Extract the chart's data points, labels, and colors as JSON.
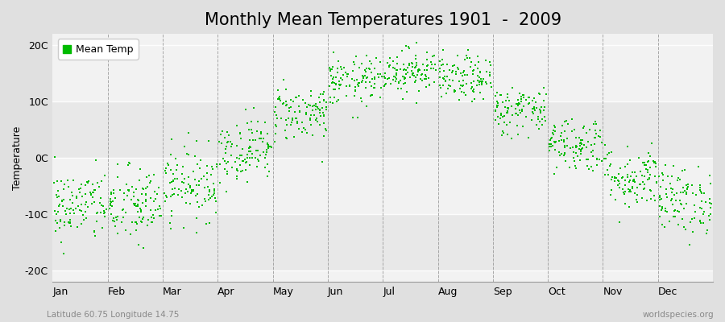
{
  "title": "Monthly Mean Temperatures 1901  -  2009",
  "ylabel": "Temperature",
  "xlabel_labels": [
    "Jan",
    "Feb",
    "Mar",
    "Apr",
    "May",
    "Jun",
    "Jul",
    "Aug",
    "Sep",
    "Oct",
    "Nov",
    "Dec"
  ],
  "ytick_labels": [
    "20C",
    "10C",
    "0C",
    "-10C",
    "-20C"
  ],
  "ytick_values": [
    20,
    10,
    0,
    -10,
    -20
  ],
  "ylim": [
    -22,
    22
  ],
  "xlim": [
    0,
    12
  ],
  "dot_color": "#00bb00",
  "bg_color": "#e0e0e0",
  "plot_bg_color_light": "#f2f2f2",
  "plot_bg_color_dark": "#e8e8e8",
  "grid_color": "#888888",
  "subtitle_left": "Latitude 60.75 Longitude 14.75",
  "subtitle_right": "worldspecies.org",
  "legend_label": "Mean Temp",
  "title_fontsize": 15,
  "label_fontsize": 9,
  "tick_fontsize": 9,
  "random_seed": 42,
  "n_years": 109,
  "monthly_means": [
    -8.5,
    -8.5,
    -4.5,
    1.5,
    8.0,
    13.5,
    15.5,
    14.0,
    8.5,
    2.5,
    -3.5,
    -7.5
  ],
  "monthly_stds": [
    3.2,
    3.5,
    3.2,
    2.8,
    2.5,
    2.2,
    2.0,
    2.0,
    2.2,
    2.5,
    2.8,
    3.0
  ]
}
